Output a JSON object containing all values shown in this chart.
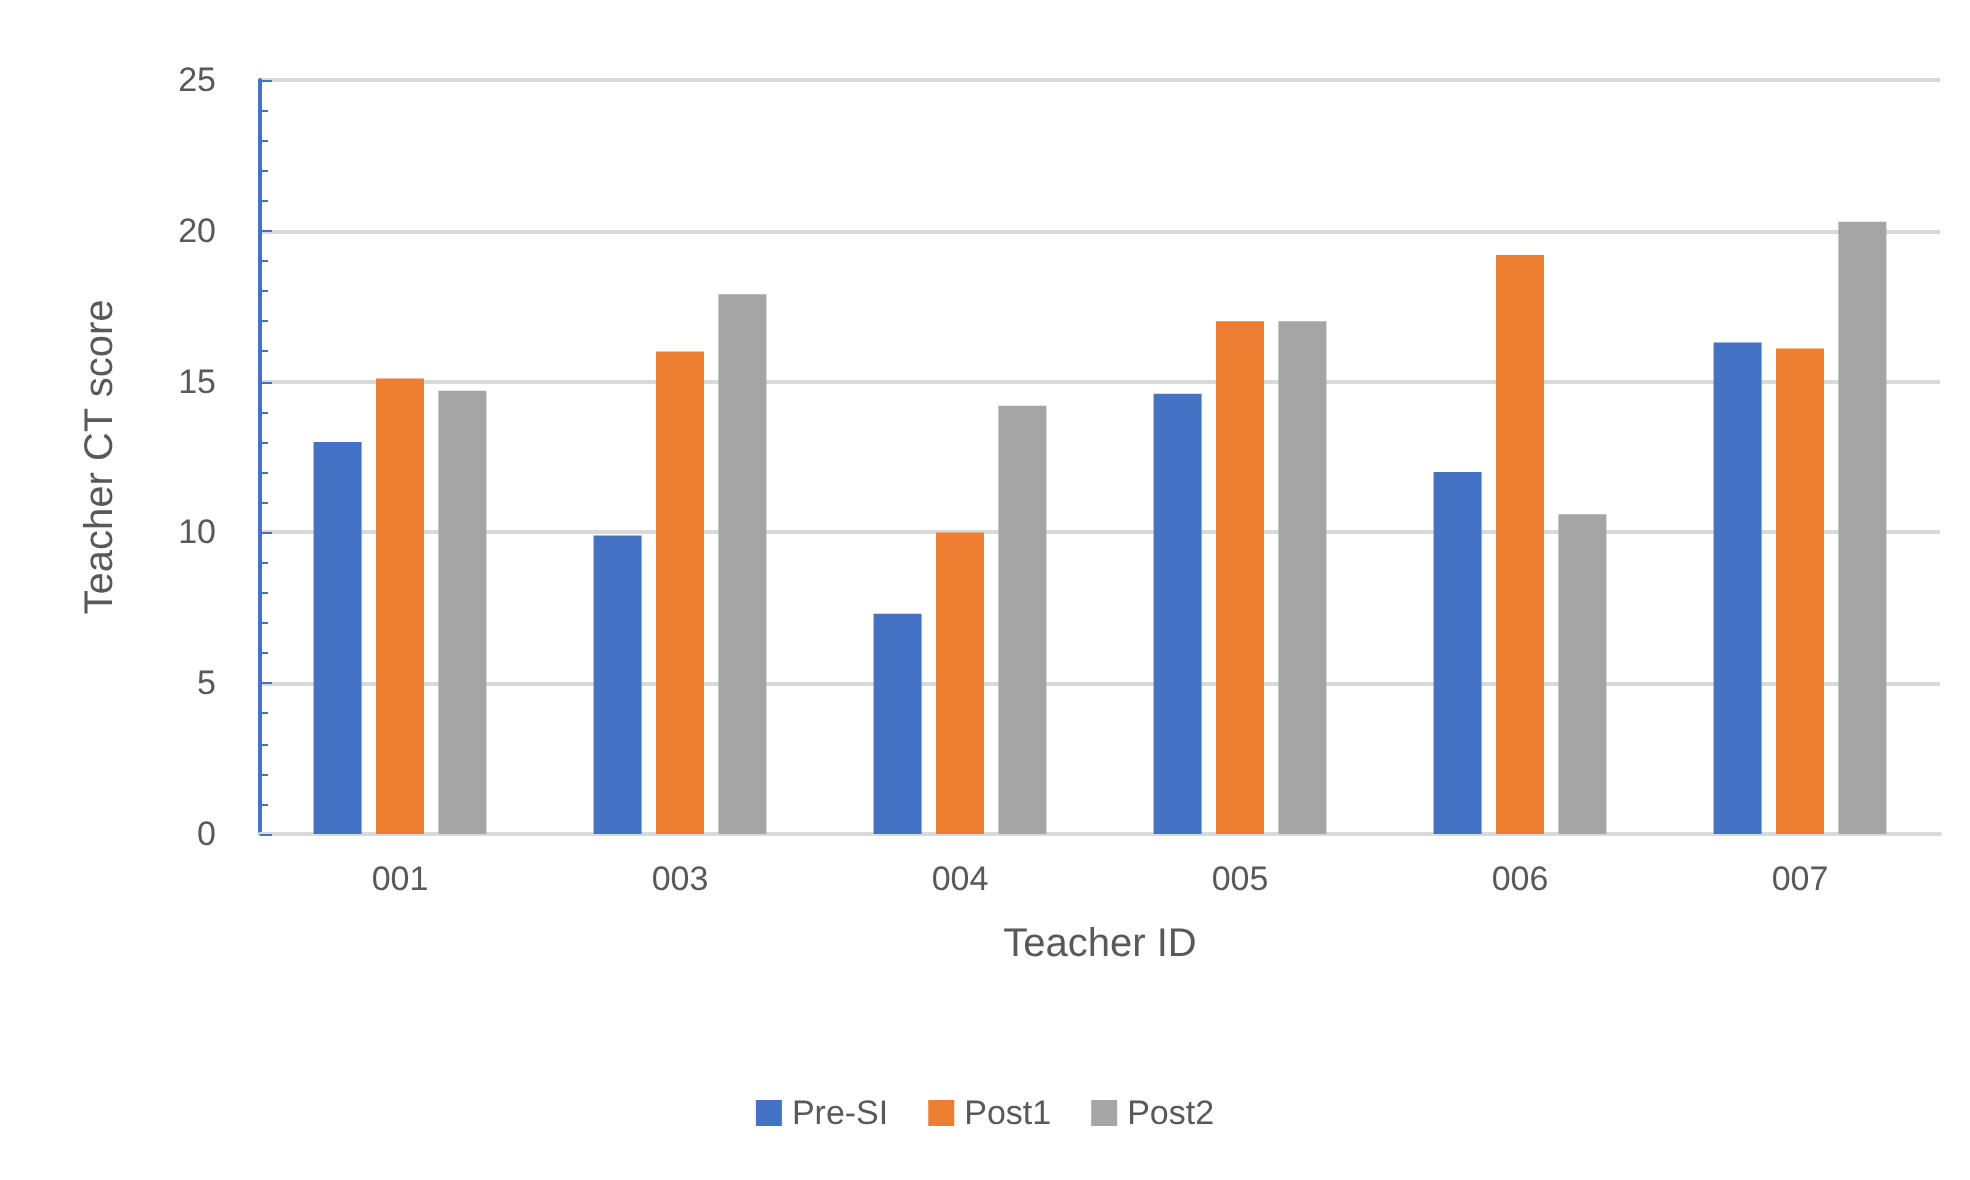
{
  "chart_data": {
    "type": "bar",
    "xlabel": "Teacher ID",
    "ylabel": "Teacher CT score",
    "categories": [
      "001",
      "003",
      "004",
      "005",
      "006",
      "007"
    ],
    "series": [
      {
        "name": "Pre-SI",
        "color": "#4472c4",
        "values": [
          13.0,
          9.9,
          7.3,
          14.6,
          12.0,
          16.3
        ]
      },
      {
        "name": "Post1",
        "color": "#ed7d31",
        "values": [
          15.1,
          16.0,
          10.0,
          17.0,
          19.2,
          16.1
        ]
      },
      {
        "name": "Post2",
        "color": "#a5a5a5",
        "values": [
          14.7,
          17.9,
          14.2,
          17.0,
          10.6,
          20.3
        ]
      }
    ],
    "ylim": [
      0,
      25
    ],
    "yticks": [
      0,
      5,
      10,
      15,
      20,
      25
    ],
    "grid": "y",
    "legend": "bottom"
  }
}
